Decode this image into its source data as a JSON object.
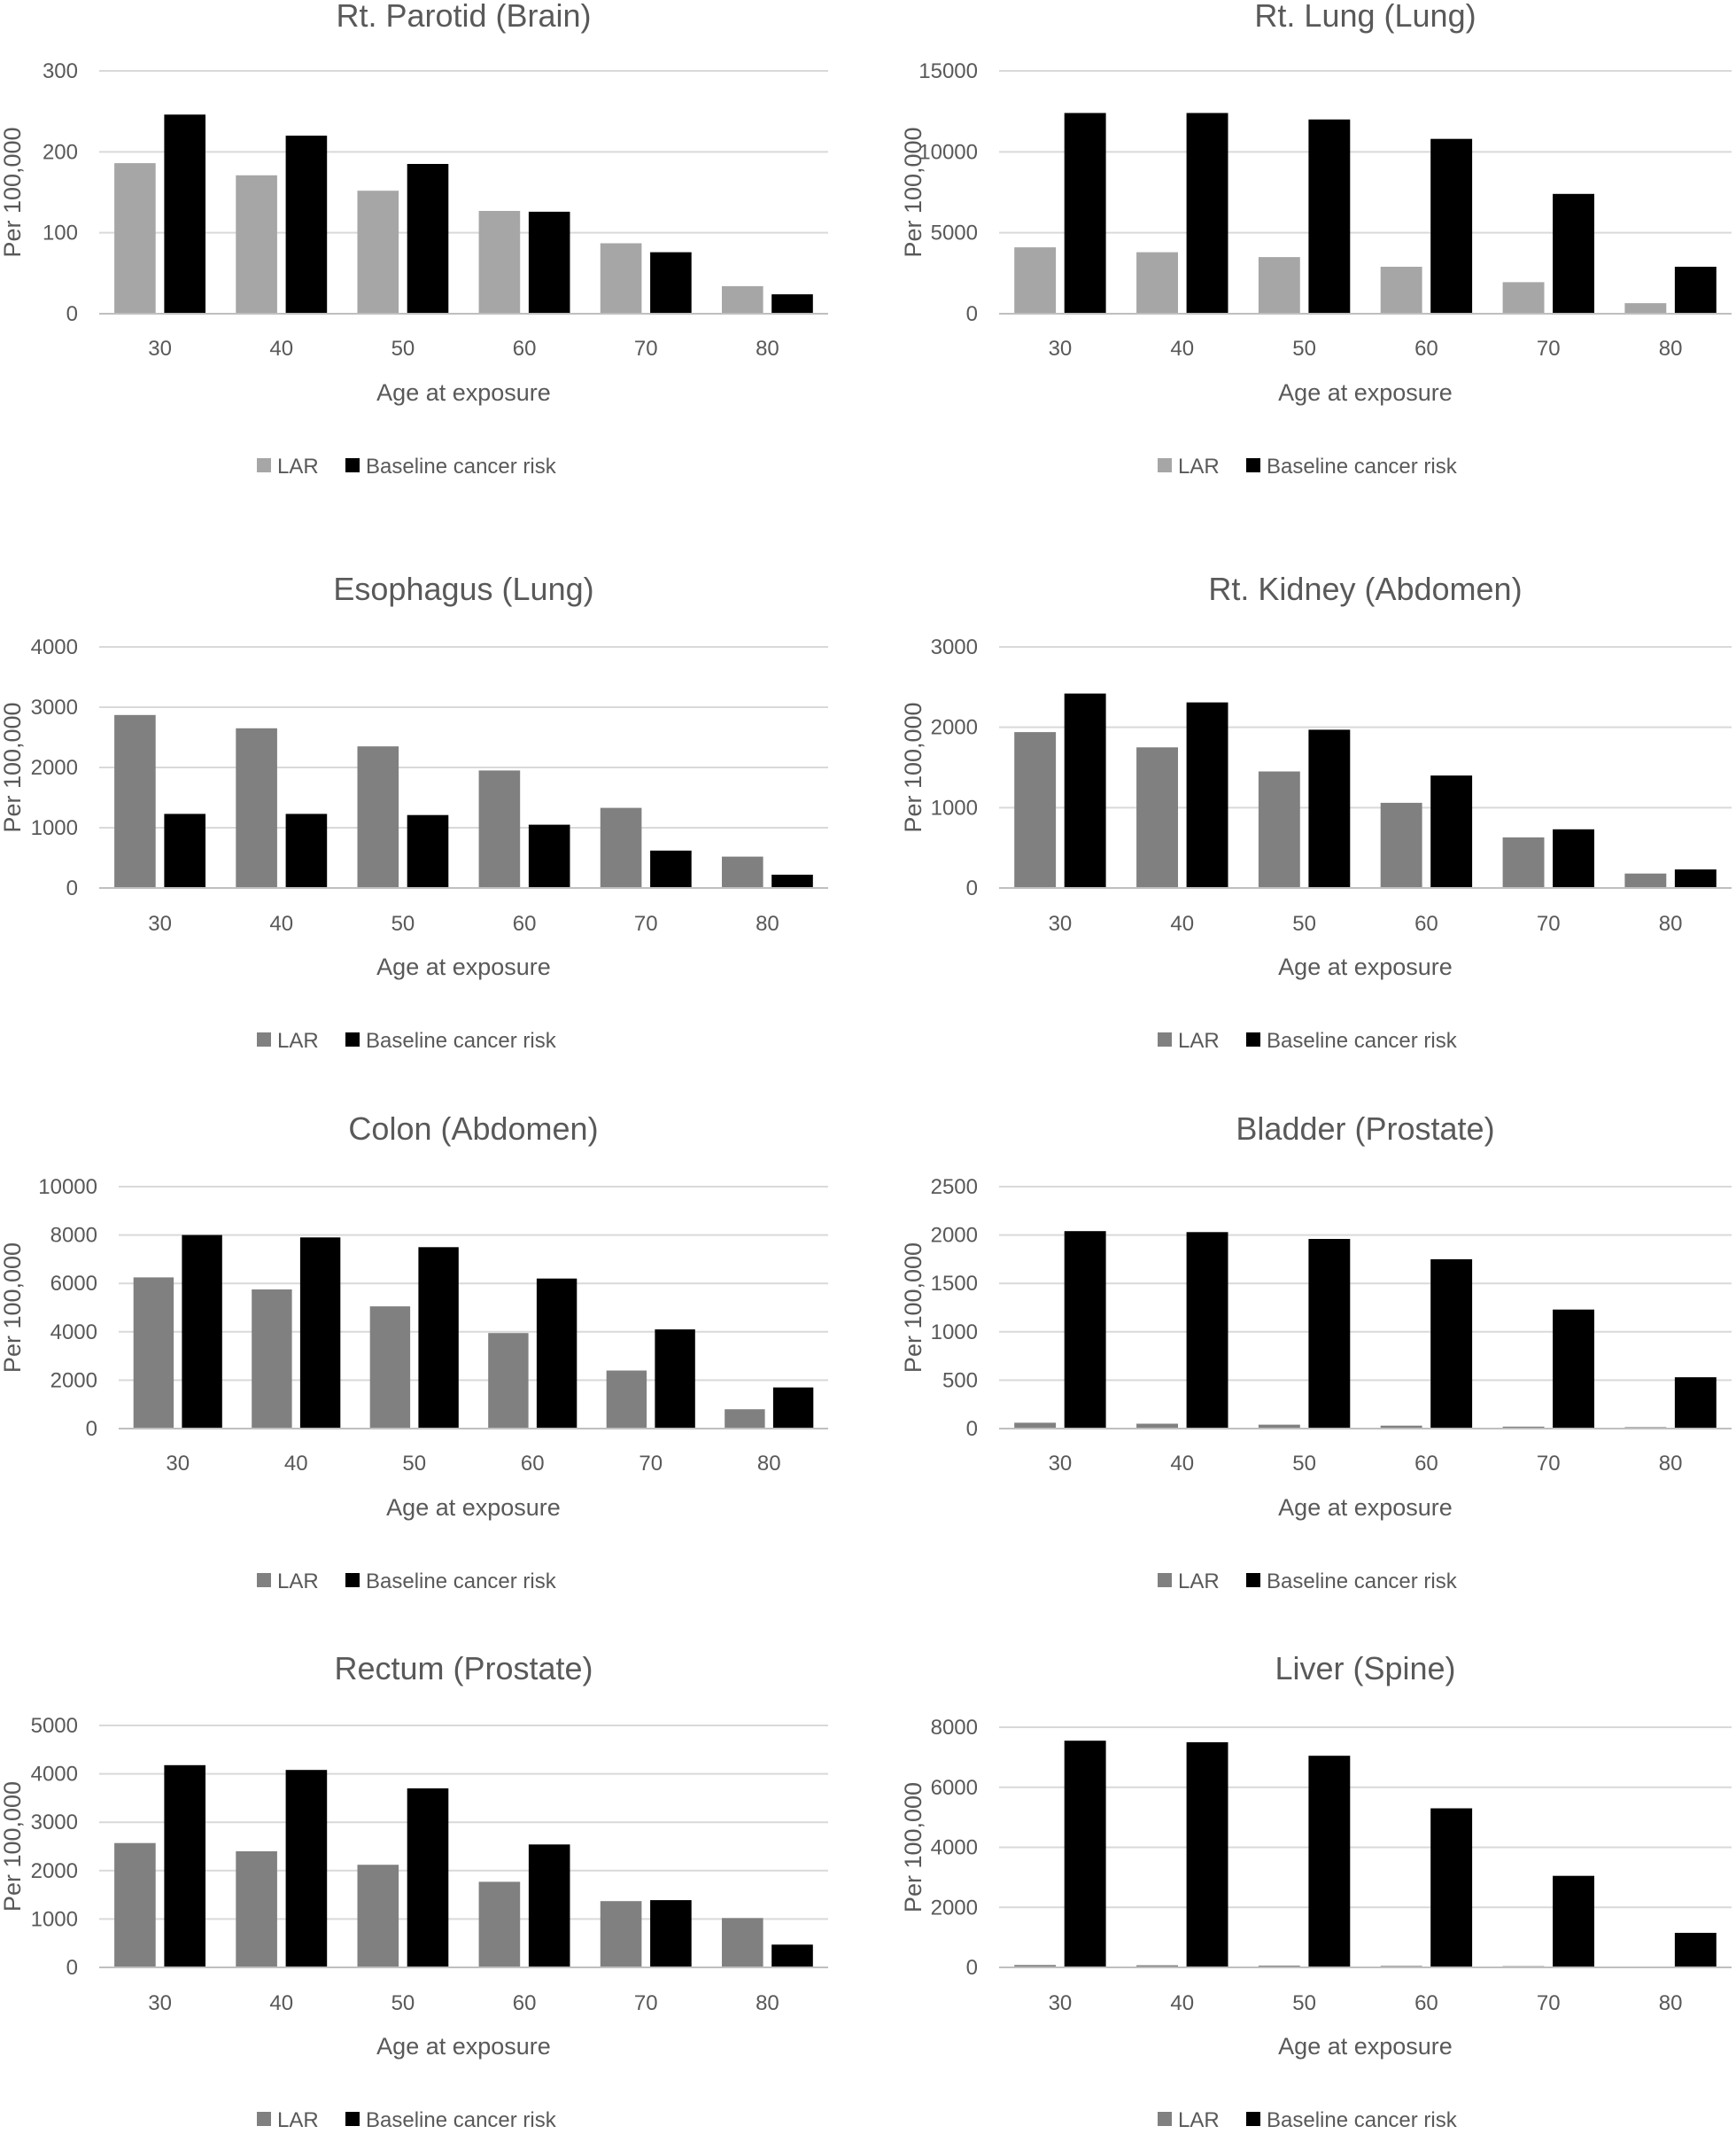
{
  "chart_data": [
    {
      "type": "bar",
      "title": "Rt. Parotid (Brain)",
      "categories": [
        "30",
        "40",
        "50",
        "60",
        "70",
        "80"
      ],
      "xlabel": "Age at exposure",
      "ylabel": "Per 100,000",
      "ylim": [
        0,
        300
      ],
      "yticks": [
        "0",
        "100",
        "200",
        "300"
      ],
      "grid": true,
      "legend": "bottom",
      "series": [
        {
          "name": "LAR",
          "color": "#a6a6a6",
          "values": [
            186,
            171,
            152,
            127,
            87,
            34
          ]
        },
        {
          "name": "Baseline cancer risk",
          "color": "#000000",
          "values": [
            246,
            220,
            185,
            126,
            76,
            24
          ]
        }
      ]
    },
    {
      "type": "bar",
      "title": "Rt. Lung (Lung)",
      "categories": [
        "30",
        "40",
        "50",
        "60",
        "70",
        "80"
      ],
      "xlabel": "Age at exposure",
      "ylabel": "Per 100,000",
      "ylim": [
        0,
        15000
      ],
      "yticks": [
        "0",
        "5000",
        "10000",
        "15000"
      ],
      "grid": true,
      "legend": "bottom",
      "series": [
        {
          "name": "LAR",
          "color": "#a6a6a6",
          "values": [
            4100,
            3800,
            3500,
            2900,
            1950,
            650
          ]
        },
        {
          "name": "Baseline cancer risk",
          "color": "#000000",
          "values": [
            12400,
            12400,
            12000,
            10800,
            7400,
            2900
          ]
        }
      ]
    },
    {
      "type": "bar",
      "title": "Esophagus (Lung)",
      "categories": [
        "30",
        "40",
        "50",
        "60",
        "70",
        "80"
      ],
      "xlabel": "Age at exposure",
      "ylabel": "Per 100,000",
      "ylim": [
        0,
        4000
      ],
      "yticks": [
        "0",
        "1000",
        "2000",
        "3000",
        "4000"
      ],
      "grid": true,
      "legend": "bottom",
      "series": [
        {
          "name": "LAR",
          "color": "#808080",
          "values": [
            2870,
            2650,
            2350,
            1950,
            1330,
            520
          ]
        },
        {
          "name": "Baseline cancer risk",
          "color": "#000000",
          "values": [
            1230,
            1230,
            1210,
            1050,
            620,
            220
          ]
        }
      ]
    },
    {
      "type": "bar",
      "title": "Rt. Kidney (Abdomen)",
      "categories": [
        "30",
        "40",
        "50",
        "60",
        "70",
        "80"
      ],
      "xlabel": "Age at exposure",
      "ylabel": "Per 100,000",
      "ylim": [
        0,
        3000
      ],
      "yticks": [
        "0",
        "1000",
        "2000",
        "3000"
      ],
      "grid": true,
      "legend": "bottom",
      "series": [
        {
          "name": "LAR",
          "color": "#808080",
          "values": [
            1940,
            1750,
            1450,
            1060,
            630,
            180
          ]
        },
        {
          "name": "Baseline cancer risk",
          "color": "#000000",
          "values": [
            2420,
            2310,
            1970,
            1400,
            730,
            230
          ]
        }
      ]
    },
    {
      "type": "bar",
      "title": "Colon (Abdomen)",
      "categories": [
        "30",
        "40",
        "50",
        "60",
        "70",
        "80"
      ],
      "xlabel": "Age at exposure",
      "ylabel": "Per 100,000",
      "ylim": [
        0,
        10000
      ],
      "yticks": [
        "0",
        "2000",
        "4000",
        "6000",
        "8000",
        "10000"
      ],
      "grid": true,
      "legend": "bottom",
      "series": [
        {
          "name": "LAR",
          "color": "#808080",
          "values": [
            6250,
            5750,
            5050,
            3950,
            2400,
            800
          ]
        },
        {
          "name": "Baseline cancer risk",
          "color": "#000000",
          "values": [
            8000,
            7900,
            7500,
            6200,
            4100,
            1700
          ]
        }
      ]
    },
    {
      "type": "bar",
      "title": "Bladder (Prostate)",
      "categories": [
        "30",
        "40",
        "50",
        "60",
        "70",
        "80"
      ],
      "xlabel": "Age at exposure",
      "ylabel": "Per 100,000",
      "ylim": [
        0,
        2500
      ],
      "yticks": [
        "0",
        "500",
        "1000",
        "1500",
        "2000",
        "2500"
      ],
      "grid": true,
      "legend": "bottom",
      "series": [
        {
          "name": "LAR",
          "color": "#808080",
          "values": [
            60,
            50,
            40,
            30,
            20,
            15
          ]
        },
        {
          "name": "Baseline cancer risk",
          "color": "#000000",
          "values": [
            2040,
            2030,
            1960,
            1750,
            1230,
            530
          ]
        }
      ]
    },
    {
      "type": "bar",
      "title": "Rectum (Prostate)",
      "categories": [
        "30",
        "40",
        "50",
        "60",
        "70",
        "80"
      ],
      "xlabel": "Age at exposure",
      "ylabel": "Per 100,000",
      "ylim": [
        0,
        5000
      ],
      "yticks": [
        "0",
        "1000",
        "2000",
        "3000",
        "4000",
        "5000"
      ],
      "grid": true,
      "legend": "bottom",
      "series": [
        {
          "name": "LAR",
          "color": "#808080",
          "values": [
            2570,
            2400,
            2120,
            1770,
            1370,
            1020
          ]
        },
        {
          "name": "Baseline cancer risk",
          "color": "#000000",
          "values": [
            4180,
            4080,
            3700,
            2540,
            1390,
            470
          ]
        }
      ]
    },
    {
      "type": "bar",
      "title": "Liver (Spine)",
      "categories": [
        "30",
        "40",
        "50",
        "60",
        "70",
        "80"
      ],
      "xlabel": "Age at exposure",
      "ylabel": "Per 100,000",
      "ylim": [
        0,
        8000
      ],
      "yticks": [
        "0",
        "2000",
        "4000",
        "6000",
        "8000"
      ],
      "grid": true,
      "legend": "bottom",
      "series": [
        {
          "name": "LAR",
          "color": "#808080",
          "values": [
            80,
            70,
            60,
            50,
            40,
            20
          ]
        },
        {
          "name": "Baseline cancer risk",
          "color": "#000000",
          "values": [
            7550,
            7500,
            7050,
            5300,
            3050,
            1150
          ]
        }
      ]
    }
  ]
}
